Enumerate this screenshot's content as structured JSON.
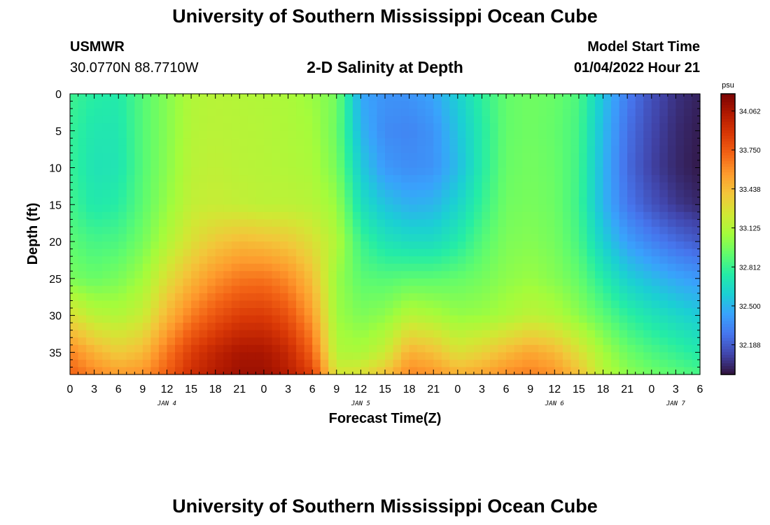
{
  "header": {
    "title": "University of Southern Mississippi Ocean Cube",
    "station_id": "USMWR",
    "coords": "30.0770N  88.7710W",
    "subtitle": "2-D Salinity at Depth",
    "model_label": "Model Start Time",
    "model_time": "01/04/2022 Hour 21"
  },
  "footer": {
    "title": "University of Southern Mississippi Ocean Cube"
  },
  "chart_data": {
    "type": "heatmap",
    "xlabel": "Forecast Time(Z)",
    "ylabel": "Depth (ft)",
    "x_tick_labels": [
      "0",
      "3",
      "6",
      "9",
      "12",
      "15",
      "18",
      "21",
      "0",
      "3",
      "6",
      "9",
      "12",
      "15",
      "18",
      "21",
      "0",
      "3",
      "6",
      "9",
      "12",
      "15",
      "18",
      "21",
      "0",
      "3",
      "6"
    ],
    "date_labels": [
      "JAN 4",
      "JAN 5",
      "JAN 6",
      "JAN 7"
    ],
    "xlim_hours": [
      0,
      78
    ],
    "ylim": [
      0,
      38
    ],
    "y_ticks": [
      0,
      5,
      10,
      15,
      20,
      25,
      30,
      35
    ],
    "y_inverted": true,
    "colorbar": {
      "unit": "psu",
      "tick_labels": [
        "34.062",
        "33.750",
        "33.438",
        "33.125",
        "32.812",
        "32.500",
        "32.188"
      ],
      "range": [
        31.95,
        34.2
      ],
      "colormap": [
        "#30123b",
        "#4145ab",
        "#4675ed",
        "#39a2fc",
        "#1bcfd4",
        "#24eca6",
        "#61fc6c",
        "#a4fc3b",
        "#d1e834",
        "#f3c63a",
        "#fe9b2d",
        "#f36315",
        "#d93806",
        "#b11901",
        "#7a0403"
      ]
    },
    "salinity_grid": {
      "depths_ft": [
        0,
        5,
        10,
        15,
        20,
        25,
        30,
        35,
        38
      ],
      "hours": [
        0,
        3,
        6,
        9,
        12,
        15,
        18,
        21,
        24,
        27,
        30,
        33,
        36,
        39,
        42,
        45,
        48,
        51,
        54,
        57,
        60,
        63,
        66,
        69,
        72,
        75,
        78
      ],
      "values_psu": [
        [
          32.82,
          32.76,
          32.74,
          32.88,
          33.0,
          33.12,
          33.14,
          33.13,
          33.12,
          33.1,
          33.05,
          32.96,
          32.45,
          32.38,
          32.38,
          32.44,
          32.6,
          32.78,
          32.92,
          32.95,
          32.93,
          32.86,
          32.55,
          32.3,
          32.15,
          32.05,
          32.0
        ],
        [
          32.8,
          32.72,
          32.72,
          32.88,
          33.0,
          33.13,
          33.15,
          33.14,
          33.13,
          33.11,
          33.08,
          32.94,
          32.5,
          32.35,
          32.33,
          32.38,
          32.55,
          32.75,
          32.92,
          32.95,
          32.92,
          32.84,
          32.52,
          32.26,
          32.12,
          32.03,
          31.98
        ],
        [
          32.8,
          32.7,
          32.71,
          32.88,
          33.01,
          33.15,
          33.17,
          33.15,
          33.14,
          33.12,
          33.1,
          32.97,
          32.58,
          32.4,
          32.36,
          32.38,
          32.52,
          32.75,
          32.93,
          32.96,
          32.93,
          32.83,
          32.5,
          32.24,
          32.1,
          32.02,
          31.97
        ],
        [
          32.83,
          32.73,
          32.76,
          32.9,
          33.04,
          33.18,
          33.2,
          33.18,
          33.16,
          33.16,
          33.14,
          33.05,
          32.68,
          32.55,
          32.48,
          32.5,
          32.62,
          32.8,
          32.95,
          32.97,
          32.94,
          32.82,
          32.5,
          32.28,
          32.16,
          32.07,
          32.02
        ],
        [
          32.9,
          32.84,
          32.86,
          32.96,
          33.12,
          33.28,
          33.38,
          33.44,
          33.42,
          33.38,
          33.28,
          33.12,
          32.82,
          32.7,
          32.66,
          32.66,
          32.74,
          32.88,
          32.98,
          33.0,
          32.96,
          32.85,
          32.6,
          32.42,
          32.32,
          32.24,
          32.18
        ],
        [
          32.97,
          32.93,
          32.97,
          33.07,
          33.28,
          33.45,
          33.58,
          33.66,
          33.67,
          33.6,
          33.42,
          33.05,
          32.9,
          32.88,
          32.9,
          32.9,
          32.92,
          32.96,
          33.02,
          33.05,
          33.0,
          32.92,
          32.75,
          32.6,
          32.52,
          32.45,
          32.4
        ],
        [
          33.28,
          33.15,
          33.12,
          33.2,
          33.45,
          33.64,
          33.77,
          33.86,
          33.87,
          33.78,
          33.55,
          33.06,
          32.98,
          33.02,
          33.14,
          33.1,
          33.04,
          33.05,
          33.1,
          33.16,
          33.12,
          33.02,
          32.9,
          32.78,
          32.7,
          32.64,
          32.58
        ],
        [
          33.62,
          33.47,
          33.37,
          33.44,
          33.66,
          33.86,
          33.98,
          34.06,
          34.06,
          33.96,
          33.72,
          33.12,
          33.1,
          33.2,
          33.48,
          33.42,
          33.28,
          33.34,
          33.44,
          33.52,
          33.45,
          33.28,
          33.08,
          32.94,
          32.86,
          32.8,
          32.74
        ],
        [
          33.73,
          33.62,
          33.55,
          33.58,
          33.74,
          33.93,
          34.03,
          34.1,
          34.1,
          34.02,
          33.85,
          33.25,
          33.28,
          33.42,
          33.62,
          33.58,
          33.48,
          33.52,
          33.6,
          33.64,
          33.58,
          33.42,
          33.15,
          33.02,
          32.95,
          32.9,
          32.85
        ]
      ]
    }
  }
}
